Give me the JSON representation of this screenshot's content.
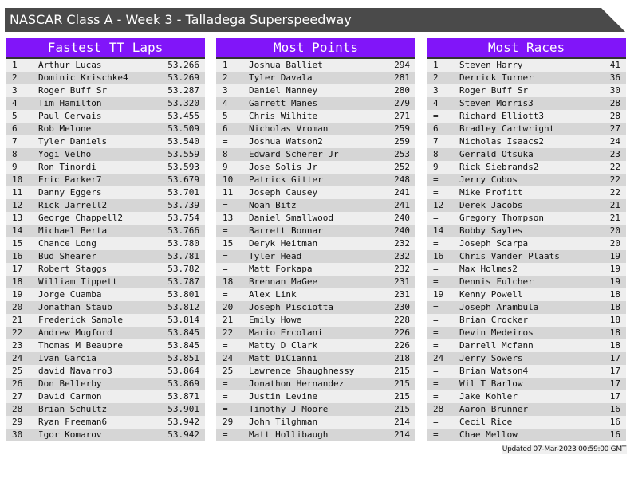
{
  "title": "NASCAR Class A - Week 3 - Talladega Superspeedway",
  "colors": {
    "header": "#8115f9",
    "titlebar": "#4a4a4a"
  },
  "panels": [
    {
      "title": "Fastest TT Laps",
      "rows": [
        [
          "1",
          "Arthur Lucas",
          "53.266"
        ],
        [
          "2",
          "Dominic Krischke4",
          "53.269"
        ],
        [
          "3",
          "Roger Buff Sr",
          "53.287"
        ],
        [
          "4",
          "Tim Hamilton",
          "53.320"
        ],
        [
          "5",
          "Paul Gervais",
          "53.455"
        ],
        [
          "6",
          "Rob Melone",
          "53.509"
        ],
        [
          "7",
          "Tyler Daniels",
          "53.540"
        ],
        [
          "8",
          "Yogi Velho",
          "53.559"
        ],
        [
          "9",
          "Ron Tinordi",
          "53.593"
        ],
        [
          "10",
          "Eric Parker7",
          "53.679"
        ],
        [
          "11",
          "Danny Eggers",
          "53.701"
        ],
        [
          "12",
          "Rick Jarrell2",
          "53.739"
        ],
        [
          "13",
          "George Chappell2",
          "53.754"
        ],
        [
          "14",
          "Michael Berta",
          "53.766"
        ],
        [
          "15",
          "Chance Long",
          "53.780"
        ],
        [
          "16",
          "Bud Shearer",
          "53.781"
        ],
        [
          "17",
          "Robert Staggs",
          "53.782"
        ],
        [
          "18",
          "William Tippett",
          "53.787"
        ],
        [
          "19",
          "Jorge Cuamba",
          "53.801"
        ],
        [
          "20",
          "Jonathan Staub",
          "53.812"
        ],
        [
          "21",
          "Frederick Sample",
          "53.814"
        ],
        [
          "22",
          "Andrew Mugford",
          "53.845"
        ],
        [
          "23",
          "Thomas M Beaupre",
          "53.845"
        ],
        [
          "24",
          "Ivan Garcia",
          "53.851"
        ],
        [
          "25",
          "david Navarro3",
          "53.864"
        ],
        [
          "26",
          "Don Bellerby",
          "53.869"
        ],
        [
          "27",
          "David Carmon",
          "53.871"
        ],
        [
          "28",
          "Brian Schultz",
          "53.901"
        ],
        [
          "29",
          "Ryan Freeman6",
          "53.942"
        ],
        [
          "30",
          "Igor Komarov",
          "53.942"
        ]
      ]
    },
    {
      "title": "Most Points",
      "rows": [
        [
          "1",
          "Joshua Balliet",
          "294"
        ],
        [
          "2",
          "Tyler Davala",
          "281"
        ],
        [
          "3",
          "Daniel Nanney",
          "280"
        ],
        [
          "4",
          "Garrett Manes",
          "279"
        ],
        [
          "5",
          "Chris Wilhite",
          "271"
        ],
        [
          "6",
          "Nicholas Vroman",
          "259"
        ],
        [
          "=",
          "Joshua Watson2",
          "259"
        ],
        [
          "8",
          "Edward Scherer Jr",
          "253"
        ],
        [
          "9",
          "Jose Solis Jr",
          "252"
        ],
        [
          "10",
          "Patrick Gitter",
          "248"
        ],
        [
          "11",
          "Joseph Causey",
          "241"
        ],
        [
          "=",
          "Noah Bitz",
          "241"
        ],
        [
          "13",
          "Daniel Smallwood",
          "240"
        ],
        [
          "=",
          "Barrett Bonnar",
          "240"
        ],
        [
          "15",
          "Deryk Heitman",
          "232"
        ],
        [
          "=",
          "Tyler Head",
          "232"
        ],
        [
          "=",
          "Matt Forkapa",
          "232"
        ],
        [
          "18",
          "Brennan MaGee",
          "231"
        ],
        [
          "=",
          "Alex Link",
          "231"
        ],
        [
          "20",
          "Joseph Pisciotta",
          "230"
        ],
        [
          "21",
          "Emily Howe",
          "228"
        ],
        [
          "22",
          "Mario Ercolani",
          "226"
        ],
        [
          "=",
          "Matty D Clark",
          "226"
        ],
        [
          "24",
          "Matt DiCianni",
          "218"
        ],
        [
          "25",
          "Lawrence Shaughnessy",
          "215"
        ],
        [
          "=",
          "Jonathon Hernandez",
          "215"
        ],
        [
          "=",
          "Justin Levine",
          "215"
        ],
        [
          "=",
          "Timothy J Moore",
          "215"
        ],
        [
          "29",
          "John Tilghman",
          "214"
        ],
        [
          "=",
          "Matt Hollibaugh",
          "214"
        ]
      ]
    },
    {
      "title": "Most Races",
      "rows": [
        [
          "1",
          "Steven Harry",
          "41"
        ],
        [
          "2",
          "Derrick Turner",
          "36"
        ],
        [
          "3",
          "Roger Buff Sr",
          "30"
        ],
        [
          "4",
          "Steven Morris3",
          "28"
        ],
        [
          "=",
          "Richard Elliott3",
          "28"
        ],
        [
          "6",
          "Bradley Cartwright",
          "27"
        ],
        [
          "7",
          "Nicholas Isaacs2",
          "24"
        ],
        [
          "8",
          "Gerrald Otsuka",
          "23"
        ],
        [
          "9",
          "Rick Siebrands2",
          "22"
        ],
        [
          "=",
          "Jerry Cobos",
          "22"
        ],
        [
          "=",
          "Mike Profitt",
          "22"
        ],
        [
          "12",
          "Derek Jacobs",
          "21"
        ],
        [
          "=",
          "Gregory Thompson",
          "21"
        ],
        [
          "14",
          "Bobby Sayles",
          "20"
        ],
        [
          "=",
          "Joseph Scarpa",
          "20"
        ],
        [
          "16",
          "Chris Vander Plaats",
          "19"
        ],
        [
          "=",
          "Max Holmes2",
          "19"
        ],
        [
          "=",
          "Dennis Fulcher",
          "19"
        ],
        [
          "19",
          "Kenny Powell",
          "18"
        ],
        [
          "=",
          "Joseph Arambula",
          "18"
        ],
        [
          "=",
          "Brian Crocker",
          "18"
        ],
        [
          "=",
          "Devin Medeiros",
          "18"
        ],
        [
          "=",
          "Darrell Mcfann",
          "18"
        ],
        [
          "24",
          "Jerry Sowers",
          "17"
        ],
        [
          "=",
          "Brian Watson4",
          "17"
        ],
        [
          "=",
          "Wil T Barlow",
          "17"
        ],
        [
          "=",
          "Jake Kohler",
          "17"
        ],
        [
          "28",
          "Aaron Brunner",
          "16"
        ],
        [
          "=",
          "Cecil Rice",
          "16"
        ],
        [
          "=",
          "Chae Mellow",
          "16"
        ]
      ]
    }
  ],
  "footer": "Updated 07-Mar-2023 00:59:00 GMT"
}
